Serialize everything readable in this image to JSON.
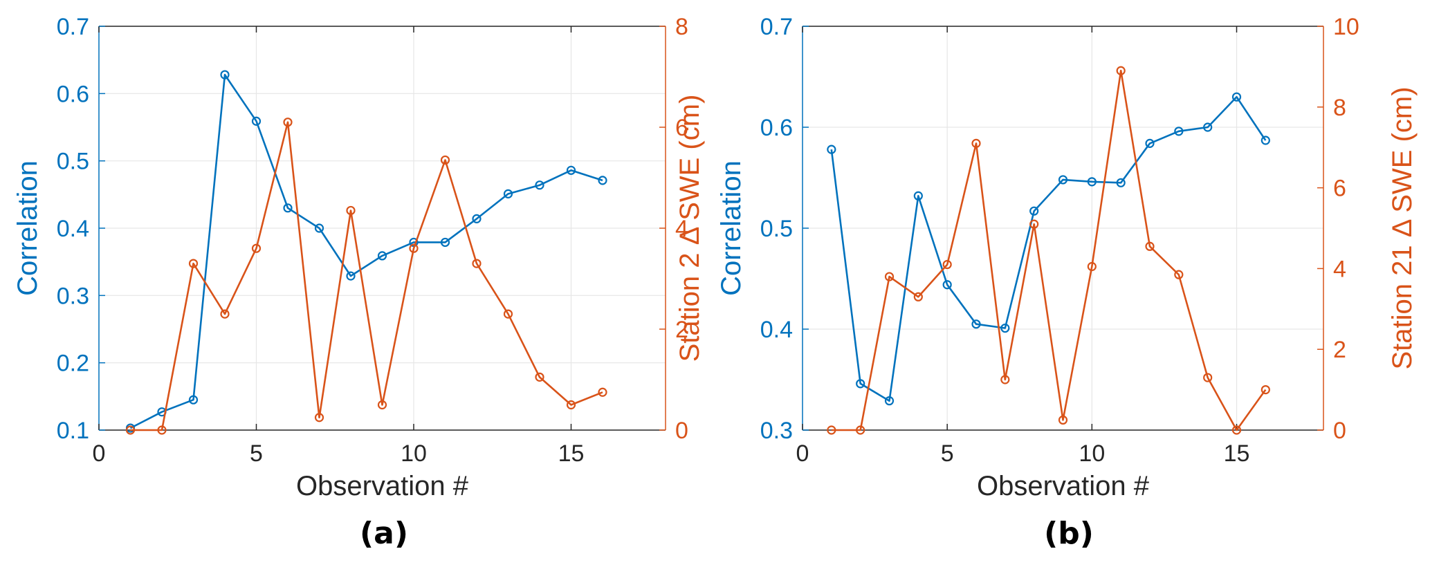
{
  "chart_data": [
    {
      "type": "line",
      "panel_label": "(a)",
      "xlabel": "Observation #",
      "ylabel_left": "Correlation",
      "ylabel_right": "Station 2 Δ SWE (cm)",
      "xlim": [
        0,
        18
      ],
      "ylim_left": [
        0.1,
        0.7
      ],
      "ylim_right": [
        0,
        8
      ],
      "xticks": [
        0,
        5,
        10,
        15
      ],
      "yticks_left": [
        0.1,
        0.2,
        0.3,
        0.4,
        0.5,
        0.6,
        0.7
      ],
      "yticks_right": [
        0,
        2,
        4,
        6,
        8
      ],
      "grid": true,
      "x": [
        1,
        2,
        3,
        4,
        5,
        6,
        7,
        8,
        9,
        10,
        11,
        12,
        13,
        14,
        15,
        16
      ],
      "series": [
        {
          "axis": "left",
          "color": "#0072BD",
          "values": [
            0.103,
            0.127,
            0.145,
            0.628,
            0.559,
            0.43,
            0.4,
            0.329,
            0.359,
            0.379,
            0.379,
            0.414,
            0.451,
            0.464,
            0.486,
            0.471
          ]
        },
        {
          "axis": "right",
          "color": "#D95319",
          "values": [
            0.0,
            0.0,
            3.3,
            2.3,
            3.6,
            6.1,
            0.25,
            4.35,
            0.5,
            3.6,
            5.35,
            3.3,
            2.3,
            1.05,
            0.5,
            0.75
          ]
        }
      ]
    },
    {
      "type": "line",
      "panel_label": "(b)",
      "xlabel": "Observation #",
      "ylabel_left": "Correlation",
      "ylabel_right": "Station 21 Δ SWE (cm)",
      "xlim": [
        0,
        18
      ],
      "ylim_left": [
        0.3,
        0.7
      ],
      "ylim_right": [
        0,
        10
      ],
      "xticks": [
        0,
        5,
        10,
        15
      ],
      "yticks_left": [
        0.3,
        0.4,
        0.5,
        0.6,
        0.7
      ],
      "yticks_right": [
        0,
        2,
        4,
        6,
        8,
        10
      ],
      "grid": true,
      "x": [
        1,
        2,
        3,
        4,
        5,
        6,
        7,
        8,
        9,
        10,
        11,
        12,
        13,
        14,
        15,
        16
      ],
      "series": [
        {
          "axis": "left",
          "color": "#0072BD",
          "values": [
            0.578,
            0.346,
            0.329,
            0.532,
            0.444,
            0.405,
            0.401,
            0.517,
            0.548,
            0.546,
            0.545,
            0.584,
            0.596,
            0.6,
            0.63,
            0.587
          ]
        },
        {
          "axis": "right",
          "color": "#D95319",
          "values": [
            0.0,
            0.0,
            3.8,
            3.3,
            4.1,
            7.1,
            1.25,
            5.1,
            0.25,
            4.05,
            8.9,
            4.55,
            3.85,
            1.3,
            0.0,
            1.0
          ]
        }
      ]
    }
  ]
}
